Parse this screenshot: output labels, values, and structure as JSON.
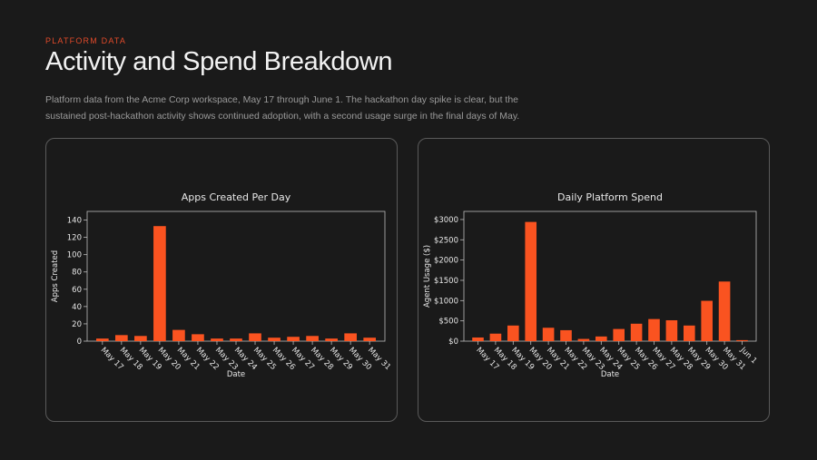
{
  "header": {
    "eyebrow": "PLATFORM DATA",
    "title": "Activity and Spend Breakdown",
    "subtitle": "Platform data from the Acme Corp workspace, May 17 through June 1. The hackathon day spike is clear, but the sustained post-hackathon activity shows continued adoption, with a second usage surge in the final days of May."
  },
  "colors": {
    "bar": "#fa5320",
    "accent": "#e04a2a",
    "background": "#1a1a1a",
    "card_border": "#5a5a5a",
    "axis": "#bbbbbb",
    "text": "#e8e8e8"
  },
  "chart_data": [
    {
      "type": "bar",
      "title": "Apps Created Per Day",
      "xlabel": "Date",
      "ylabel": "Apps Created",
      "categories": [
        "May 17",
        "May 18",
        "May 19",
        "May 20",
        "May 21",
        "May 22",
        "May 23",
        "May 24",
        "May 25",
        "May 26",
        "May 27",
        "May 28",
        "May 29",
        "May 30",
        "May 31"
      ],
      "values": [
        3,
        7,
        6,
        133,
        13,
        8,
        3,
        3,
        9,
        4,
        5,
        6,
        3,
        9,
        4
      ],
      "ylim": [
        0,
        150
      ],
      "yticks": [
        0,
        20,
        40,
        60,
        80,
        100,
        120,
        140
      ],
      "ytick_labels": [
        "0",
        "20",
        "40",
        "60",
        "80",
        "100",
        "120",
        "140"
      ],
      "grid": false
    },
    {
      "type": "bar",
      "title": "Daily Platform Spend",
      "xlabel": "Date",
      "ylabel": "Agent Usage ($)",
      "categories": [
        "May 17",
        "May 18",
        "May 19",
        "May 20",
        "May 21",
        "May 22",
        "May 23",
        "May 24",
        "May 25",
        "May 26",
        "May 27",
        "May 28",
        "May 29",
        "May 30",
        "May 31",
        "Jun 1"
      ],
      "values": [
        90,
        185,
        385,
        2940,
        330,
        270,
        55,
        115,
        300,
        430,
        545,
        515,
        385,
        995,
        1470,
        25
      ],
      "ylim": [
        0,
        3200
      ],
      "yticks": [
        0,
        500,
        1000,
        1500,
        2000,
        2500,
        3000
      ],
      "ytick_labels": [
        "$0",
        "$500",
        "$1000",
        "$1500",
        "$2000",
        "$2500",
        "$3000"
      ],
      "grid": false
    }
  ]
}
